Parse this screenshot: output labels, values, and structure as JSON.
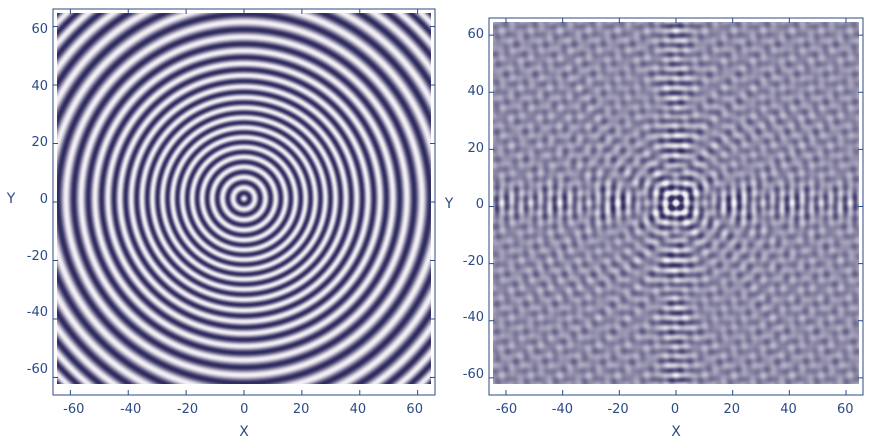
{
  "colors": {
    "dark": "#2e2a5e",
    "light": "#f4f1f6",
    "axis": "#2b4a86"
  },
  "chart_data": [
    {
      "type": "heatmap",
      "title": "",
      "xlabel": "X",
      "ylabel": "Y",
      "xlim": [
        -66,
        66
      ],
      "ylim": [
        -66,
        66
      ],
      "xticks": [
        "-60",
        "-40",
        "-20",
        "0",
        "20",
        "40",
        "60"
      ],
      "yticks": [
        "60",
        "40",
        "20",
        "0",
        "-20",
        "-40",
        "-60"
      ],
      "pattern": "concentric-rings",
      "grid": false
    },
    {
      "type": "heatmap",
      "title": "",
      "xlabel": "X",
      "ylabel": "Y",
      "xlim": [
        -66,
        66
      ],
      "ylim": [
        -66,
        66
      ],
      "xticks": [
        "-60",
        "-40",
        "-20",
        "0",
        "20",
        "40",
        "60"
      ],
      "yticks": [
        "60",
        "40",
        "20",
        "0",
        "-20",
        "-40",
        "-60"
      ],
      "pattern": "cross-interference",
      "grid": false
    }
  ]
}
